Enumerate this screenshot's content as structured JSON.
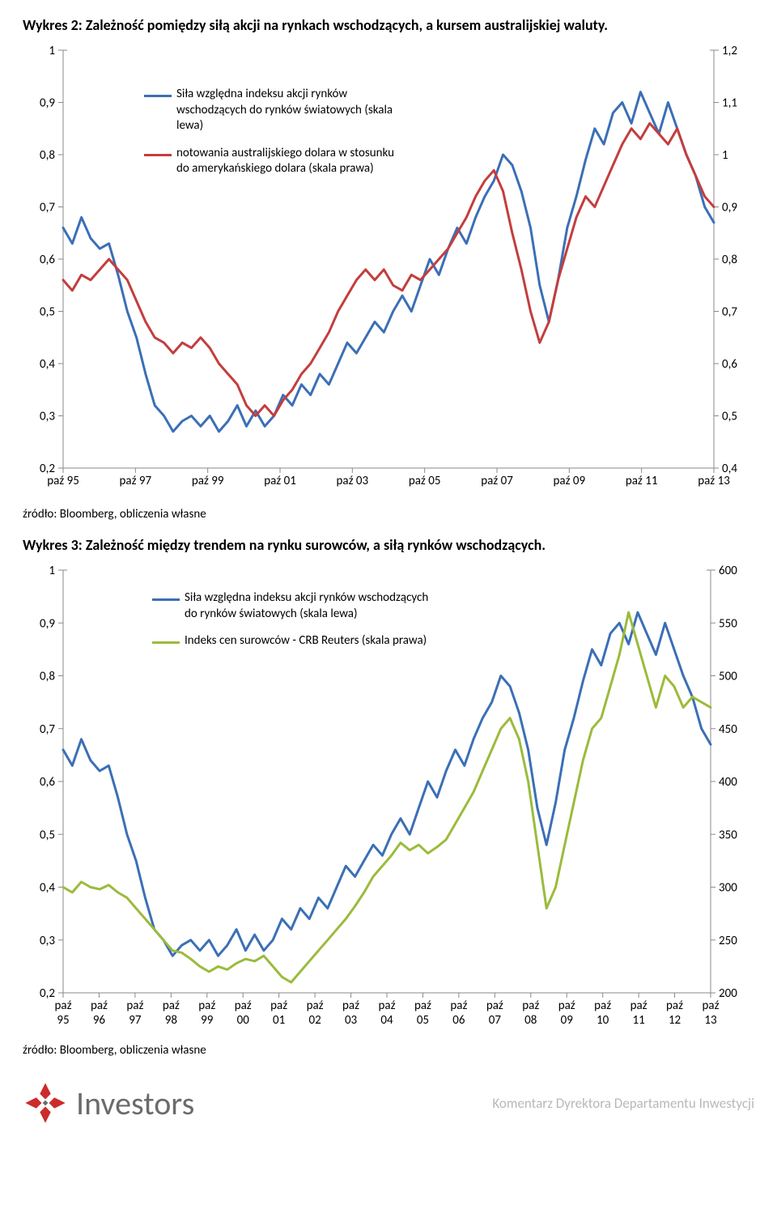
{
  "chart1": {
    "title": "Wykres 2: Zależność pomiędzy siłą akcji na rynkach wschodzących, a kursem australijskiej waluty.",
    "type": "line",
    "background_color": "#ffffff",
    "axis_color": "#8a8a8a",
    "tick_color": "#8a8a8a",
    "label_color": "#000000",
    "label_fontsize": 15,
    "title_fontsize": 18,
    "line_width": 3,
    "x_labels": [
      "paź 95",
      "paź 97",
      "paź 99",
      "paź 01",
      "paź 03",
      "paź 05",
      "paź 07",
      "paź 09",
      "paź 11",
      "paź 13"
    ],
    "left_axis": {
      "min": 0.2,
      "max": 1.0,
      "ticks": [
        0.2,
        0.3,
        0.4,
        0.5,
        0.6,
        0.7,
        0.8,
        0.9,
        1.0
      ],
      "tick_labels": [
        "0,2",
        "0,3",
        "0,4",
        "0,5",
        "0,6",
        "0,7",
        "0,8",
        "0,9",
        "1"
      ]
    },
    "right_axis": {
      "min": 0.4,
      "max": 1.2,
      "ticks": [
        0.4,
        0.5,
        0.6,
        0.7,
        0.8,
        0.9,
        1.0,
        1.1,
        1.2
      ],
      "tick_labels": [
        "0,4",
        "0,5",
        "0,6",
        "0,7",
        "0,8",
        "0,9",
        "1",
        "1,1",
        "1,2"
      ]
    },
    "series": [
      {
        "name": "blue",
        "axis": "left",
        "color": "#3b6fb6",
        "legend": "Siła względna indeksu akcji rynków wschodzących do rynków światowych (skala lewa)",
        "data": [
          0.66,
          0.63,
          0.68,
          0.64,
          0.62,
          0.63,
          0.57,
          0.5,
          0.45,
          0.38,
          0.32,
          0.3,
          0.27,
          0.29,
          0.3,
          0.28,
          0.3,
          0.27,
          0.29,
          0.32,
          0.28,
          0.31,
          0.28,
          0.3,
          0.34,
          0.32,
          0.36,
          0.34,
          0.38,
          0.36,
          0.4,
          0.44,
          0.42,
          0.45,
          0.48,
          0.46,
          0.5,
          0.53,
          0.5,
          0.55,
          0.6,
          0.57,
          0.62,
          0.66,
          0.63,
          0.68,
          0.72,
          0.75,
          0.8,
          0.78,
          0.73,
          0.66,
          0.55,
          0.48,
          0.56,
          0.66,
          0.72,
          0.79,
          0.85,
          0.82,
          0.88,
          0.9,
          0.86,
          0.92,
          0.88,
          0.84,
          0.9,
          0.85,
          0.8,
          0.76,
          0.7,
          0.67
        ]
      },
      {
        "name": "red",
        "axis": "right",
        "color": "#c43d3d",
        "legend": "notowania australijskiego dolara w stosunku do amerykańskiego dolara (skala prawa)",
        "data": [
          0.76,
          0.74,
          0.77,
          0.76,
          0.78,
          0.8,
          0.78,
          0.76,
          0.72,
          0.68,
          0.65,
          0.64,
          0.62,
          0.64,
          0.63,
          0.65,
          0.63,
          0.6,
          0.58,
          0.56,
          0.52,
          0.5,
          0.52,
          0.5,
          0.53,
          0.55,
          0.58,
          0.6,
          0.63,
          0.66,
          0.7,
          0.73,
          0.76,
          0.78,
          0.76,
          0.78,
          0.75,
          0.74,
          0.77,
          0.76,
          0.78,
          0.8,
          0.82,
          0.85,
          0.88,
          0.92,
          0.95,
          0.97,
          0.93,
          0.85,
          0.78,
          0.7,
          0.64,
          0.68,
          0.76,
          0.82,
          0.88,
          0.92,
          0.9,
          0.94,
          0.98,
          1.02,
          1.05,
          1.03,
          1.06,
          1.04,
          1.02,
          1.05,
          1.0,
          0.96,
          0.92,
          0.9
        ]
      }
    ],
    "source": "źródło: Bloomberg, obliczenia własne"
  },
  "chart2": {
    "title": "Wykres 3: Zależność między trendem na rynku surowców, a siłą rynków wschodzących.",
    "type": "line",
    "background_color": "#ffffff",
    "axis_color": "#8a8a8a",
    "tick_color": "#8a8a8a",
    "label_color": "#000000",
    "label_fontsize": 15,
    "title_fontsize": 18,
    "line_width": 3,
    "x_labels": [
      "paź 95",
      "paź 96",
      "paź 97",
      "paź 98",
      "paź 99",
      "paź 00",
      "paź 01",
      "paź 02",
      "paź 03",
      "paź 04",
      "paź 05",
      "paź 06",
      "paź 07",
      "paź 08",
      "paź 09",
      "paź 10",
      "paź 11",
      "paź 12",
      "paź 13"
    ],
    "left_axis": {
      "min": 0.2,
      "max": 1.0,
      "ticks": [
        0.2,
        0.3,
        0.4,
        0.5,
        0.6,
        0.7,
        0.8,
        0.9,
        1.0
      ],
      "tick_labels": [
        "0,2",
        "0,3",
        "0,4",
        "0,5",
        "0,6",
        "0,7",
        "0,8",
        "0,9",
        "1"
      ]
    },
    "right_axis": {
      "min": 200,
      "max": 600,
      "ticks": [
        200,
        250,
        300,
        350,
        400,
        450,
        500,
        550,
        600
      ],
      "tick_labels": [
        "200",
        "250",
        "300",
        "350",
        "400",
        "450",
        "500",
        "550",
        "600"
      ]
    },
    "series": [
      {
        "name": "blue",
        "axis": "left",
        "color": "#3b6fb6",
        "legend": "Siła względna indeksu akcji rynków wschodzących do rynków światowych (skala lewa)",
        "data": [
          0.66,
          0.63,
          0.68,
          0.64,
          0.62,
          0.63,
          0.57,
          0.5,
          0.45,
          0.38,
          0.32,
          0.3,
          0.27,
          0.29,
          0.3,
          0.28,
          0.3,
          0.27,
          0.29,
          0.32,
          0.28,
          0.31,
          0.28,
          0.3,
          0.34,
          0.32,
          0.36,
          0.34,
          0.38,
          0.36,
          0.4,
          0.44,
          0.42,
          0.45,
          0.48,
          0.46,
          0.5,
          0.53,
          0.5,
          0.55,
          0.6,
          0.57,
          0.62,
          0.66,
          0.63,
          0.68,
          0.72,
          0.75,
          0.8,
          0.78,
          0.73,
          0.66,
          0.55,
          0.48,
          0.56,
          0.66,
          0.72,
          0.79,
          0.85,
          0.82,
          0.88,
          0.9,
          0.86,
          0.92,
          0.88,
          0.84,
          0.9,
          0.85,
          0.8,
          0.76,
          0.7,
          0.67
        ]
      },
      {
        "name": "green",
        "axis": "right",
        "color": "#9bbb3c",
        "legend": "Indeks cen surowców - CRB Reuters (skala prawa)",
        "data": [
          300,
          295,
          305,
          300,
          298,
          302,
          295,
          290,
          280,
          270,
          260,
          250,
          240,
          238,
          232,
          225,
          220,
          225,
          222,
          228,
          232,
          230,
          235,
          225,
          215,
          210,
          220,
          230,
          240,
          250,
          260,
          270,
          282,
          295,
          310,
          320,
          330,
          342,
          335,
          340,
          332,
          338,
          345,
          360,
          375,
          390,
          410,
          430,
          450,
          460,
          440,
          400,
          340,
          280,
          300,
          340,
          380,
          420,
          450,
          460,
          490,
          520,
          560,
          530,
          500,
          470,
          500,
          490,
          470,
          480,
          475,
          470
        ]
      }
    ],
    "source": "źródło: Bloomberg, obliczenia własne"
  },
  "footer": {
    "brand": "Investors",
    "tagline": "Komentarz Dyrektora Departamentu Inwestycji",
    "logo_color_red": "#cc2b2b",
    "logo_color_grey": "#6b6b6b"
  }
}
